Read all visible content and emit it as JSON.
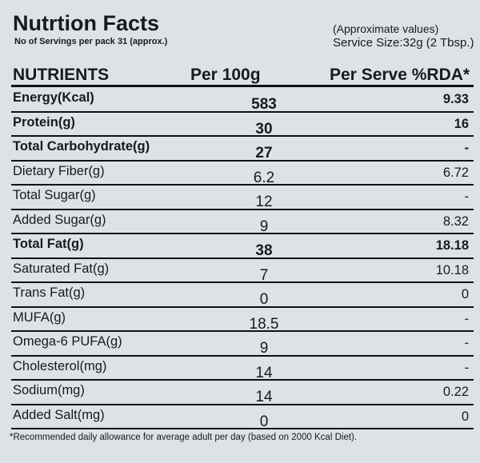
{
  "header": {
    "title": "Nutrtion Facts",
    "servings": "No of Servings per pack 31 (approx.)",
    "note": "(Approximate values)",
    "serving_size": "Service Size:32g (2 Tbsp.)"
  },
  "table": {
    "columns": [
      "NUTRIENTS",
      "Per 100g",
      "Per Serve %RDA*"
    ],
    "rows": [
      {
        "nutrient": "Energy(Kcal)",
        "per_100g": "583",
        "per_serve": "9.33",
        "bold": true
      },
      {
        "nutrient": "Protein(g)",
        "per_100g": "30",
        "per_serve": "16",
        "bold": true
      },
      {
        "nutrient": "Total Carbohydrate(g)",
        "per_100g": "27",
        "per_serve": "-",
        "bold": true
      },
      {
        "nutrient": "Dietary Fiber(g)",
        "per_100g": "6.2",
        "per_serve": "6.72",
        "bold": false
      },
      {
        "nutrient": "Total Sugar(g)",
        "per_100g": "12",
        "per_serve": "-",
        "bold": false
      },
      {
        "nutrient": "Added Sugar(g)",
        "per_100g": "9",
        "per_serve": "8.32",
        "bold": false
      },
      {
        "nutrient": "Total Fat(g)",
        "per_100g": "38",
        "per_serve": "18.18",
        "bold": true
      },
      {
        "nutrient": "Saturated Fat(g)",
        "per_100g": "7",
        "per_serve": "10.18",
        "bold": false
      },
      {
        "nutrient": "Trans Fat(g)",
        "per_100g": "0",
        "per_serve": "0",
        "bold": false
      },
      {
        "nutrient": "MUFA(g)",
        "per_100g": "18.5",
        "per_serve": "-",
        "bold": false
      },
      {
        "nutrient": "Omega-6 PUFA(g)",
        "per_100g": "9",
        "per_serve": "-",
        "bold": false
      },
      {
        "nutrient": "Cholesterol(mg)",
        "per_100g": "14",
        "per_serve": "-",
        "bold": false
      },
      {
        "nutrient": "Sodium(mg)",
        "per_100g": "14",
        "per_serve": "0.22",
        "bold": false
      },
      {
        "nutrient": "Added Salt(mg)",
        "per_100g": "0",
        "per_serve": "0",
        "bold": false
      }
    ]
  },
  "footnote": "*Recommended daily allowance for average adult per day (based on 2000 Kcal Diet)."
}
